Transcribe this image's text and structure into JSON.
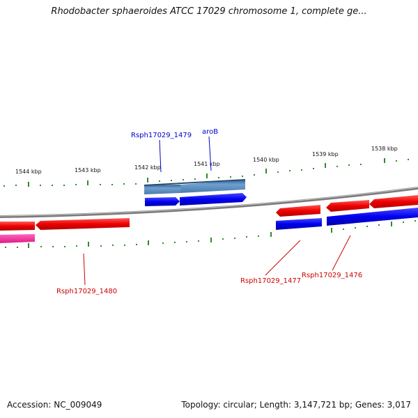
{
  "title": "Rhodobacter sphaeroides ATCC 17029 chromosome 1, complete ge...",
  "footer": {
    "accession": "Accession: NC_009049",
    "topology": "Topology: circular; Length: 3,147,721 bp; Genes: 3,017"
  },
  "scale_labels": [
    "1544 kbp",
    "1543 kbp",
    "1542 kbp",
    "1541 kbp",
    "1540 kbp",
    "1539 kbp",
    "1538 kbp"
  ],
  "gene_labels": {
    "rsph1479": "Rsph17029_1479",
    "aroB": "aroB",
    "rsph1480": "Rsph17029_1480",
    "rsph1477": "Rsph17029_1477",
    "rsph1476": "Rsph17029_1476"
  },
  "colors": {
    "backbone": "#8a8a8a",
    "tick": "#2e8b2e",
    "forward_gene": "#0000e0",
    "reverse_gene": "#ee0000",
    "label_blue": "#0000cc",
    "label_red": "#cc0000",
    "pseudo_gene": "#ff3399",
    "operon": "#4f7fb0"
  }
}
